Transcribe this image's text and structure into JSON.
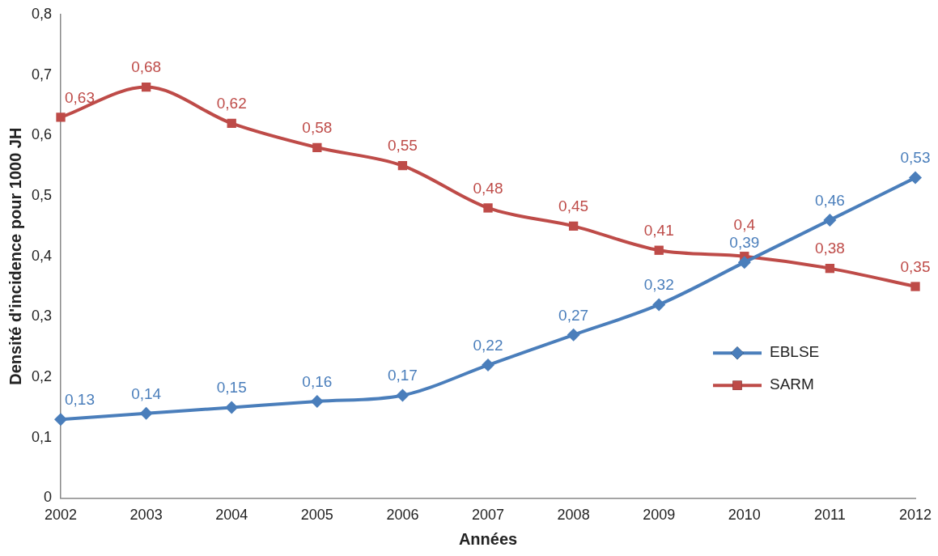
{
  "chart_data": {
    "type": "line",
    "xlabel": "Années",
    "ylabel": "Densité d'incidence pour 1000 JH",
    "categories": [
      "2002",
      "2003",
      "2004",
      "2005",
      "2006",
      "2007",
      "2008",
      "2009",
      "2010",
      "2011",
      "2012"
    ],
    "series": [
      {
        "name": "EBLSE",
        "color": "#4a7ebb",
        "marker": "diamond",
        "values": [
          0.13,
          0.14,
          0.15,
          0.16,
          0.17,
          0.22,
          0.27,
          0.32,
          0.39,
          0.46,
          0.53
        ],
        "value_labels": [
          "0,13",
          "0,14",
          "0,15",
          "0,16",
          "0,17",
          "0,22",
          "0,27",
          "0,32",
          "0,39",
          "0,46",
          "0,53"
        ]
      },
      {
        "name": "SARM",
        "color": "#be4b48",
        "marker": "square",
        "values": [
          0.63,
          0.68,
          0.62,
          0.58,
          0.55,
          0.48,
          0.45,
          0.41,
          0.4,
          0.38,
          0.35
        ],
        "value_labels": [
          "0,63",
          "0,68",
          "0,62",
          "0,58",
          "0,55",
          "0,48",
          "0,45",
          "0,41",
          "0,4",
          "0,38",
          "0,35"
        ]
      }
    ],
    "ylim": [
      0,
      0.8
    ],
    "yticks": [
      {
        "value": 0,
        "label": "0"
      },
      {
        "value": 0.1,
        "label": "0,1"
      },
      {
        "value": 0.2,
        "label": "0,2"
      },
      {
        "value": 0.3,
        "label": "0,3"
      },
      {
        "value": 0.4,
        "label": "0,4"
      },
      {
        "value": 0.5,
        "label": "0,5"
      },
      {
        "value": 0.6,
        "label": "0,6"
      },
      {
        "value": 0.7,
        "label": "0,7"
      },
      {
        "value": 0.8,
        "label": "0,8"
      }
    ],
    "grid": false,
    "legend": "right",
    "line_style": "solid"
  }
}
